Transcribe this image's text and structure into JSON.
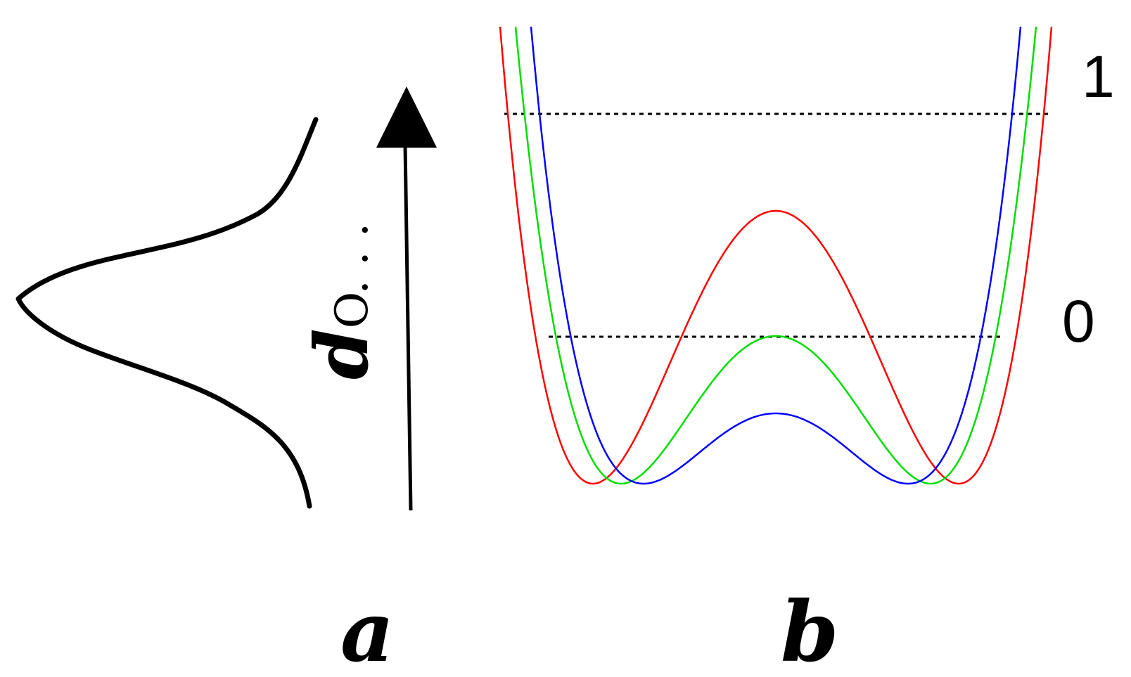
{
  "panel_a": {
    "label": "a",
    "axis_variable": "d",
    "axis_subscript": "O. . ."
  },
  "panel_b": {
    "label": "b",
    "levels": [
      {
        "label": "1"
      },
      {
        "label": "0"
      }
    ],
    "curves": [
      {
        "color": "#ff0000"
      },
      {
        "color": "#00dd00"
      },
      {
        "color": "#0000ff"
      }
    ]
  }
}
